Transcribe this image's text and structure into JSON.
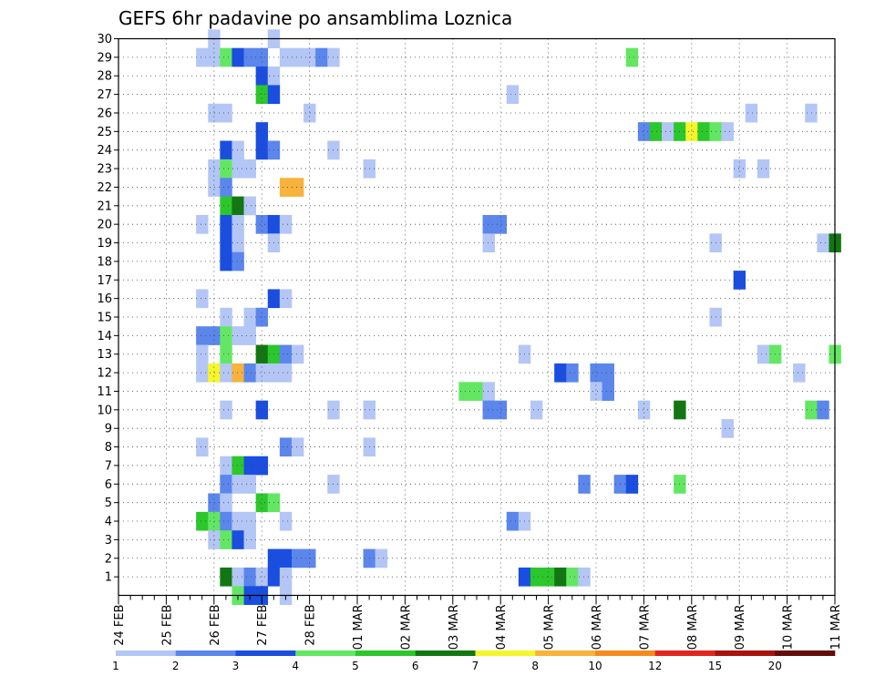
{
  "chart_data": {
    "type": "heatmap",
    "title": "GEFS 6hr padavine po ansamblima Loznica",
    "x_tick_labels": [
      "24 FEB",
      "25 FEB",
      "26 FEB",
      "27 FEB",
      "28 FEB",
      "01 MAR",
      "02 MAR",
      "03 MAR",
      "04 MAR",
      "05 MAR",
      "06 MAR",
      "07 MAR",
      "08 MAR",
      "09 MAR",
      "10 MAR",
      "11 MAR"
    ],
    "y_tick_labels": [
      "1",
      "2",
      "3",
      "4",
      "5",
      "6",
      "7",
      "8",
      "9",
      "10",
      "11",
      "12",
      "13",
      "14",
      "15",
      "16",
      "17",
      "18",
      "19",
      "20",
      "21",
      "22",
      "23",
      "24",
      "25",
      "26",
      "27",
      "28",
      "29",
      "30"
    ],
    "x_steps": 60,
    "steps_per_day": 4,
    "y_range": [
      0,
      30
    ],
    "grid": true,
    "colorbar": {
      "labels": [
        "1",
        "2",
        "3",
        "4",
        "5",
        "6",
        "7",
        "8",
        "10",
        "12",
        "15",
        "20"
      ],
      "colors": [
        "#b3c6f5",
        "#5b86ec",
        "#1a4ee0",
        "#63e763",
        "#2cc72c",
        "#127712",
        "#f5f52b",
        "#f7b33b",
        "#f58b1f",
        "#e2261f",
        "#a8120f",
        "#640b0b"
      ],
      "last_color": "#640b0b"
    },
    "cells": [
      [
        8,
        30,
        1
      ],
      [
        13,
        30,
        1
      ],
      [
        7,
        29,
        1
      ],
      [
        8,
        29,
        1
      ],
      [
        9,
        29,
        4
      ],
      [
        10,
        29,
        3
      ],
      [
        11,
        29,
        2
      ],
      [
        12,
        29,
        2
      ],
      [
        14,
        29,
        1
      ],
      [
        15,
        29,
        1
      ],
      [
        16,
        29,
        1
      ],
      [
        17,
        29,
        2
      ],
      [
        18,
        29,
        1
      ],
      [
        43,
        29,
        4
      ],
      [
        12,
        28,
        3
      ],
      [
        13,
        28,
        1
      ],
      [
        12,
        27,
        5
      ],
      [
        13,
        27,
        3
      ],
      [
        33,
        27,
        1
      ],
      [
        8,
        26,
        1
      ],
      [
        9,
        26,
        1
      ],
      [
        16,
        26,
        1
      ],
      [
        53,
        26,
        1
      ],
      [
        58,
        26,
        1
      ],
      [
        12,
        25,
        3
      ],
      [
        44,
        25,
        2
      ],
      [
        45,
        25,
        5
      ],
      [
        46,
        25,
        1
      ],
      [
        47,
        25,
        5
      ],
      [
        48,
        25,
        7
      ],
      [
        49,
        25,
        5
      ],
      [
        50,
        25,
        4
      ],
      [
        51,
        25,
        1
      ],
      [
        9,
        24,
        3
      ],
      [
        10,
        24,
        1
      ],
      [
        12,
        24,
        3
      ],
      [
        13,
        24,
        2
      ],
      [
        18,
        24,
        1
      ],
      [
        8,
        23,
        1
      ],
      [
        9,
        23,
        4
      ],
      [
        10,
        23,
        1
      ],
      [
        11,
        23,
        1
      ],
      [
        21,
        23,
        1
      ],
      [
        52,
        23,
        1
      ],
      [
        54,
        23,
        1
      ],
      [
        8,
        22,
        1
      ],
      [
        9,
        22,
        2
      ],
      [
        14,
        22,
        8
      ],
      [
        15,
        22,
        8
      ],
      [
        9,
        21,
        5
      ],
      [
        10,
        21,
        6
      ],
      [
        11,
        21,
        1
      ],
      [
        7,
        20,
        1
      ],
      [
        9,
        20,
        3
      ],
      [
        10,
        20,
        1
      ],
      [
        12,
        20,
        2
      ],
      [
        13,
        20,
        3
      ],
      [
        14,
        20,
        1
      ],
      [
        31,
        20,
        2
      ],
      [
        32,
        20,
        2
      ],
      [
        9,
        19,
        3
      ],
      [
        10,
        19,
        1
      ],
      [
        13,
        19,
        1
      ],
      [
        31,
        19,
        1
      ],
      [
        50,
        19,
        1
      ],
      [
        59,
        19,
        1
      ],
      [
        60,
        19,
        6
      ],
      [
        9,
        18,
        3
      ],
      [
        10,
        18,
        2
      ],
      [
        52,
        17,
        3
      ],
      [
        7,
        16,
        1
      ],
      [
        13,
        16,
        3
      ],
      [
        14,
        16,
        1
      ],
      [
        9,
        15,
        1
      ],
      [
        11,
        15,
        1
      ],
      [
        12,
        15,
        2
      ],
      [
        50,
        15,
        1
      ],
      [
        7,
        14,
        2
      ],
      [
        8,
        14,
        2
      ],
      [
        9,
        14,
        4
      ],
      [
        10,
        14,
        1
      ],
      [
        11,
        14,
        1
      ],
      [
        7,
        13,
        1
      ],
      [
        9,
        13,
        4
      ],
      [
        12,
        13,
        6
      ],
      [
        13,
        13,
        5
      ],
      [
        14,
        13,
        2
      ],
      [
        15,
        13,
        1
      ],
      [
        34,
        13,
        1
      ],
      [
        54,
        13,
        1
      ],
      [
        55,
        13,
        4
      ],
      [
        60,
        13,
        4
      ],
      [
        7,
        12,
        1
      ],
      [
        8,
        12,
        7
      ],
      [
        9,
        12,
        1
      ],
      [
        10,
        12,
        8
      ],
      [
        11,
        12,
        2
      ],
      [
        12,
        12,
        1
      ],
      [
        13,
        12,
        1
      ],
      [
        14,
        12,
        1
      ],
      [
        37,
        12,
        3
      ],
      [
        38,
        12,
        2
      ],
      [
        40,
        12,
        2
      ],
      [
        41,
        12,
        2
      ],
      [
        57,
        12,
        1
      ],
      [
        29,
        11,
        4
      ],
      [
        30,
        11,
        4
      ],
      [
        31,
        11,
        1
      ],
      [
        40,
        11,
        1
      ],
      [
        41,
        11,
        2
      ],
      [
        9,
        10,
        1
      ],
      [
        12,
        10,
        3
      ],
      [
        18,
        10,
        1
      ],
      [
        21,
        10,
        1
      ],
      [
        31,
        10,
        2
      ],
      [
        32,
        10,
        2
      ],
      [
        35,
        10,
        1
      ],
      [
        44,
        10,
        1
      ],
      [
        47,
        10,
        6
      ],
      [
        58,
        10,
        4
      ],
      [
        59,
        10,
        2
      ],
      [
        51,
        9,
        1
      ],
      [
        7,
        8,
        1
      ],
      [
        14,
        8,
        2
      ],
      [
        15,
        8,
        1
      ],
      [
        21,
        8,
        1
      ],
      [
        9,
        7,
        1
      ],
      [
        10,
        7,
        5
      ],
      [
        11,
        7,
        3
      ],
      [
        12,
        7,
        3
      ],
      [
        9,
        6,
        2
      ],
      [
        10,
        6,
        1
      ],
      [
        11,
        6,
        1
      ],
      [
        18,
        6,
        1
      ],
      [
        39,
        6,
        2
      ],
      [
        42,
        6,
        2
      ],
      [
        43,
        6,
        3
      ],
      [
        47,
        6,
        4
      ],
      [
        8,
        5,
        2
      ],
      [
        9,
        5,
        1
      ],
      [
        12,
        5,
        5
      ],
      [
        13,
        5,
        4
      ],
      [
        7,
        4,
        5
      ],
      [
        8,
        4,
        4
      ],
      [
        9,
        4,
        2
      ],
      [
        10,
        4,
        1
      ],
      [
        11,
        4,
        1
      ],
      [
        14,
        4,
        1
      ],
      [
        33,
        4,
        2
      ],
      [
        34,
        4,
        1
      ],
      [
        8,
        3,
        1
      ],
      [
        9,
        3,
        4
      ],
      [
        10,
        3,
        3
      ],
      [
        11,
        3,
        1
      ],
      [
        13,
        2,
        3
      ],
      [
        14,
        2,
        3
      ],
      [
        15,
        2,
        2
      ],
      [
        16,
        2,
        2
      ],
      [
        21,
        2,
        2
      ],
      [
        22,
        2,
        1
      ],
      [
        9,
        1,
        6
      ],
      [
        10,
        1,
        1
      ],
      [
        11,
        1,
        2
      ],
      [
        12,
        1,
        1
      ],
      [
        13,
        1,
        3
      ],
      [
        14,
        1,
        1
      ],
      [
        34,
        1,
        3
      ],
      [
        35,
        1,
        5
      ],
      [
        36,
        1,
        5
      ],
      [
        37,
        1,
        6
      ],
      [
        38,
        1,
        4
      ],
      [
        39,
        1,
        1
      ],
      [
        10,
        0,
        4
      ],
      [
        11,
        0,
        3
      ],
      [
        12,
        0,
        3
      ],
      [
        14,
        0,
        1
      ]
    ]
  }
}
